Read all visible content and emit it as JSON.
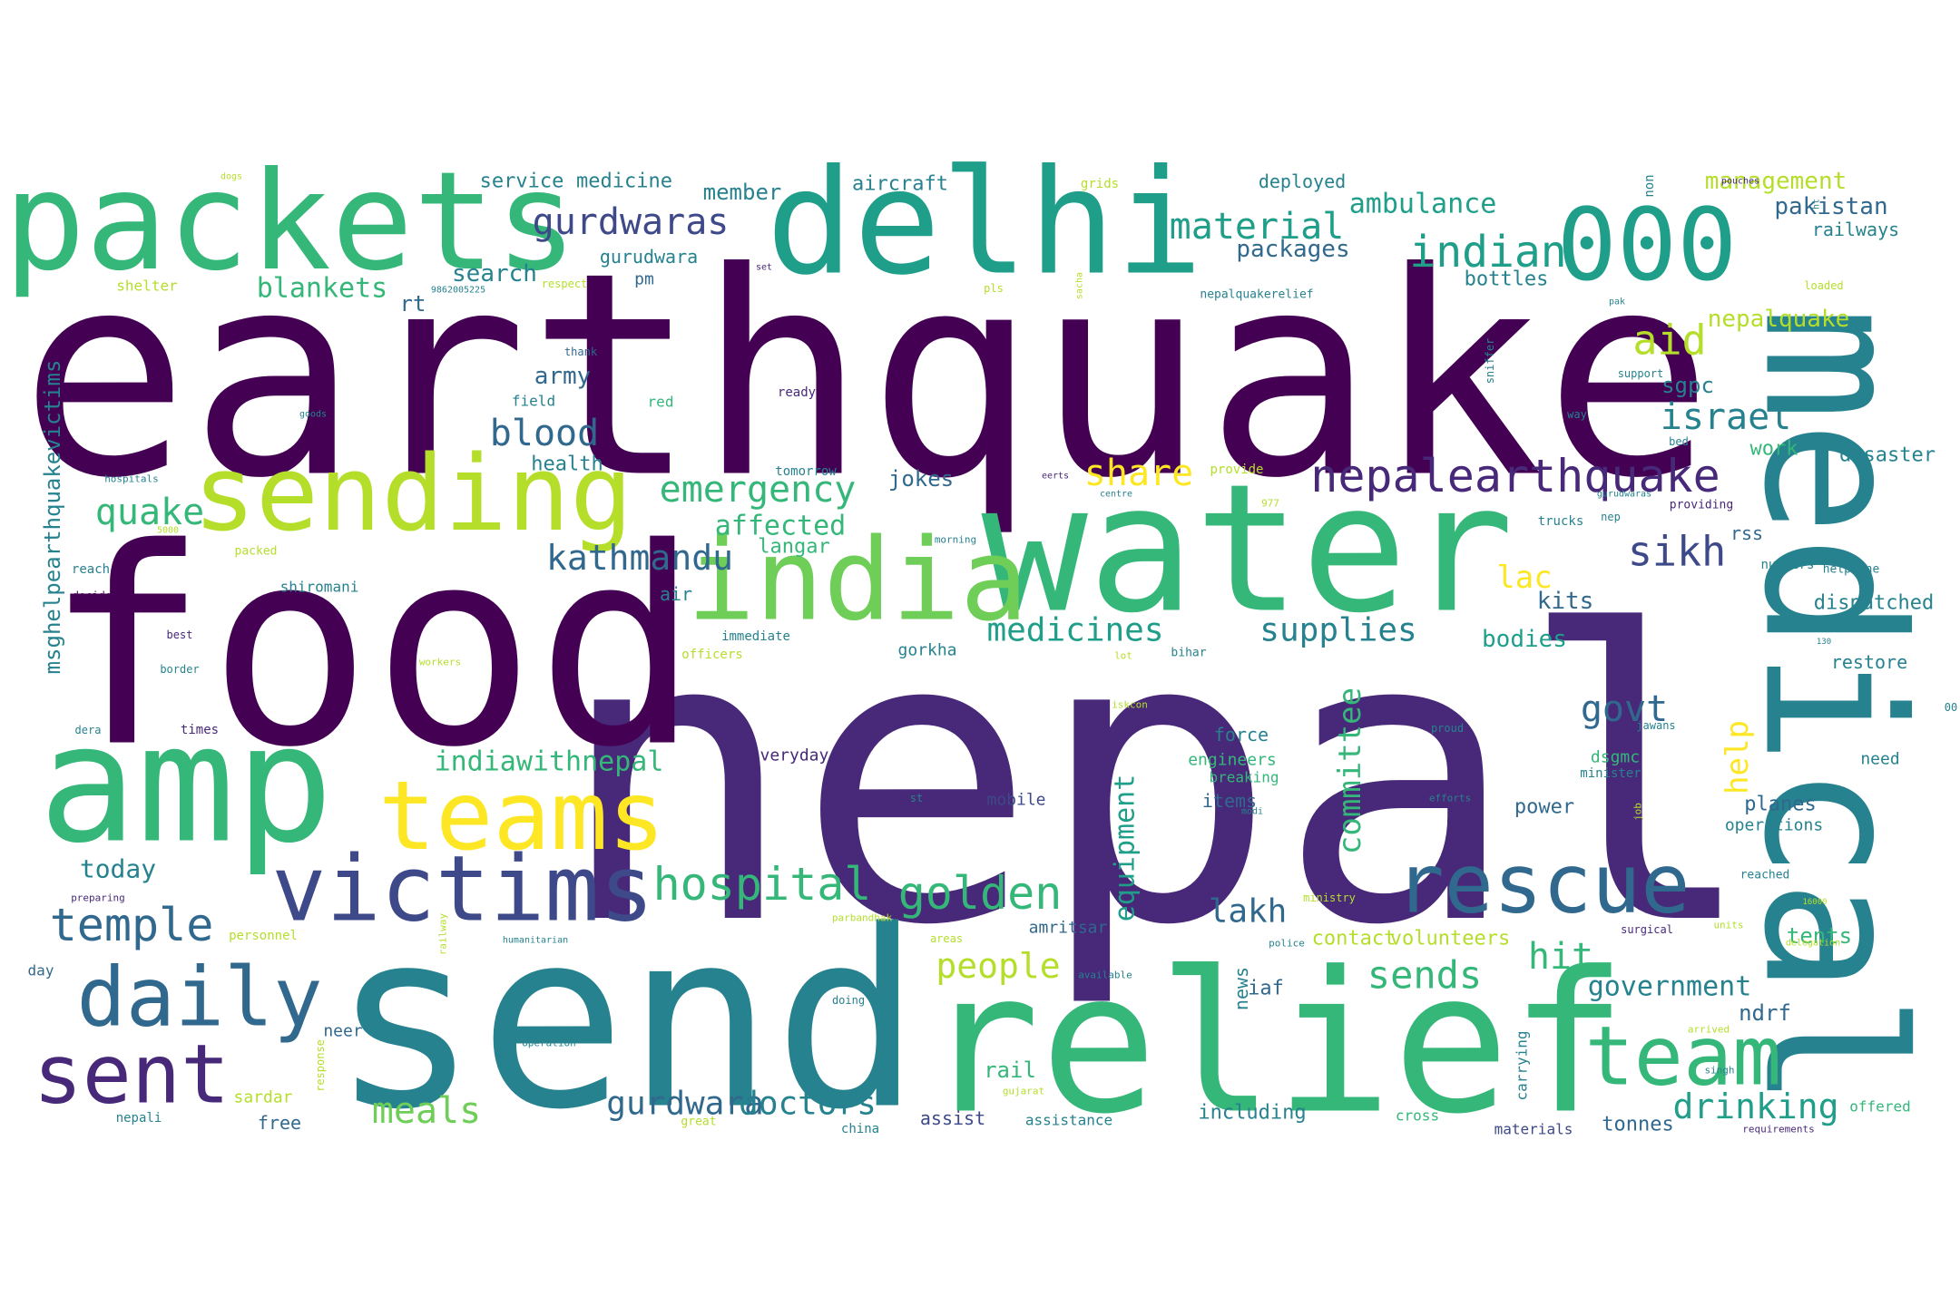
{
  "palette": {
    "dark_purple": "#440154",
    "purple": "#482878",
    "indigo": "#3e4989",
    "blue": "#31688e",
    "teal_blue": "#26828e",
    "teal": "#1f9e89",
    "green_teal": "#35b779",
    "green": "#6ece58",
    "lime": "#b5de2b",
    "yellow": "#fde725"
  },
  "words": [
    {
      "text": "nepal",
      "color": "#482878"
    },
    {
      "text": "earthquake",
      "color": "#440154"
    },
    {
      "text": "food",
      "color": "#440154"
    },
    {
      "text": "send",
      "color": "#26828e"
    },
    {
      "text": "medical",
      "color": "#26828e"
    },
    {
      "text": "relief",
      "color": "#35b779"
    },
    {
      "text": "water",
      "color": "#35b779"
    },
    {
      "text": "delhi",
      "color": "#1f9e89"
    },
    {
      "text": "packets",
      "color": "#35b779"
    },
    {
      "text": "amp",
      "color": "#35b779"
    },
    {
      "text": "india",
      "color": "#6ece58"
    },
    {
      "text": "sending",
      "color": "#b5de2b"
    },
    {
      "text": "victims",
      "color": "#3e4989"
    },
    {
      "text": "rescue",
      "color": "#31688e"
    },
    {
      "text": "teams",
      "color": "#fde725"
    },
    {
      "text": "000",
      "color": "#1f9e89"
    },
    {
      "text": "team",
      "color": "#35b779"
    },
    {
      "text": "daily",
      "color": "#31688e"
    },
    {
      "text": "sent",
      "color": "#482878"
    },
    {
      "text": "nepalearthquake",
      "color": "#482878"
    },
    {
      "text": "hospital",
      "color": "#35b779"
    },
    {
      "text": "golden",
      "color": "#35b779"
    },
    {
      "text": "temple",
      "color": "#31688e"
    },
    {
      "text": "gurdwaras",
      "color": "#3e4989"
    },
    {
      "text": "material",
      "color": "#1f9e89"
    },
    {
      "text": "indian",
      "color": "#1f9e89"
    },
    {
      "text": "emergency",
      "color": "#35b779"
    },
    {
      "text": "kathmandu",
      "color": "#31688e"
    },
    {
      "text": "blood",
      "color": "#31688e"
    },
    {
      "text": "quake",
      "color": "#35b779"
    },
    {
      "text": "share",
      "color": "#fde725"
    },
    {
      "text": "israel",
      "color": "#26828e"
    },
    {
      "text": "sikh",
      "color": "#3e4989"
    },
    {
      "text": "aid",
      "color": "#b5de2b"
    },
    {
      "text": "govt",
      "color": "#31688e"
    },
    {
      "text": "medicines",
      "color": "#1f9e89"
    },
    {
      "text": "supplies",
      "color": "#26828e"
    },
    {
      "text": "committee",
      "color": "#35b779"
    },
    {
      "text": "equipment",
      "color": "#1f9e89"
    },
    {
      "text": "help",
      "color": "#fde725"
    },
    {
      "text": "gurdwara",
      "color": "#31688e"
    },
    {
      "text": "doctors",
      "color": "#26828e"
    },
    {
      "text": "drinking",
      "color": "#1f9e89"
    },
    {
      "text": "meals",
      "color": "#6ece58"
    },
    {
      "text": "people",
      "color": "#b5de2b"
    },
    {
      "text": "lakh",
      "color": "#31688e"
    },
    {
      "text": "sends",
      "color": "#35b779"
    },
    {
      "text": "hit",
      "color": "#35b779"
    },
    {
      "text": "ambulance",
      "color": "#1f9e89"
    },
    {
      "text": "affected",
      "color": "#35b779"
    },
    {
      "text": "indiawithnepal",
      "color": "#35b779"
    },
    {
      "text": "blankets",
      "color": "#35b779"
    },
    {
      "text": "packages",
      "color": "#31688e"
    },
    {
      "text": "lac",
      "color": "#fde725"
    },
    {
      "text": "kits",
      "color": "#31688e"
    },
    {
      "text": "bodies",
      "color": "#1f9e89"
    },
    {
      "text": "army",
      "color": "#31688e"
    },
    {
      "text": "today",
      "color": "#26828e"
    },
    {
      "text": "government",
      "color": "#26828e"
    },
    {
      "text": "nepalquake",
      "color": "#b5de2b"
    },
    {
      "text": "msghelpearthquakevictims",
      "color": "#26828e"
    },
    {
      "text": "search",
      "color": "#26828e"
    },
    {
      "text": "rt",
      "color": "#31688e"
    },
    {
      "text": "health",
      "color": "#26828e"
    },
    {
      "text": "jokes",
      "color": "#31688e"
    },
    {
      "text": "langar",
      "color": "#35b779"
    },
    {
      "text": "sgpc",
      "color": "#26828e"
    },
    {
      "text": "management",
      "color": "#b5de2b"
    },
    {
      "text": "pakistan",
      "color": "#31688e"
    },
    {
      "text": "railways",
      "color": "#26828e"
    },
    {
      "text": "member",
      "color": "#26828e"
    },
    {
      "text": "service",
      "color": "#26828e"
    },
    {
      "text": "medicine",
      "color": "#26828e"
    },
    {
      "text": "aircraft",
      "color": "#26828e"
    },
    {
      "text": "deployed",
      "color": "#26828e"
    },
    {
      "text": "bottles",
      "color": "#26828e"
    },
    {
      "text": "gurudwara",
      "color": "#26828e"
    },
    {
      "text": "pm",
      "color": "#31688e"
    },
    {
      "text": "force",
      "color": "#26828e"
    },
    {
      "text": "items",
      "color": "#31688e"
    },
    {
      "text": "power",
      "color": "#31688e"
    },
    {
      "text": "planes",
      "color": "#31688e"
    },
    {
      "text": "operations",
      "color": "#26828e"
    },
    {
      "text": "work",
      "color": "#35b779"
    },
    {
      "text": "disaster",
      "color": "#26828e"
    },
    {
      "text": "dispatched",
      "color": "#26828e"
    },
    {
      "text": "restore",
      "color": "#26828e"
    },
    {
      "text": "rss",
      "color": "#31688e"
    },
    {
      "text": "tents",
      "color": "#35b779"
    },
    {
      "text": "ndrf",
      "color": "#31688e"
    },
    {
      "text": "news",
      "color": "#26828e"
    },
    {
      "text": "iaf",
      "color": "#31688e"
    },
    {
      "text": "contact",
      "color": "#b5de2b"
    },
    {
      "text": "volunteers",
      "color": "#b5de2b"
    },
    {
      "text": "amritsar",
      "color": "#31688e"
    },
    {
      "text": "mobile",
      "color": "#3e4989"
    },
    {
      "text": "everyday",
      "color": "#482878"
    },
    {
      "text": "engineers",
      "color": "#35b779"
    },
    {
      "text": "breaking",
      "color": "#35b779"
    },
    {
      "text": "dsgmc",
      "color": "#35b779"
    },
    {
      "text": "minister",
      "color": "#26828e"
    },
    {
      "text": "need",
      "color": "#26828e"
    },
    {
      "text": "rail",
      "color": "#35b779"
    },
    {
      "text": "carrying",
      "color": "#26828e"
    },
    {
      "text": "including",
      "color": "#26828e"
    },
    {
      "text": "tonnes",
      "color": "#31688e"
    },
    {
      "text": "materials",
      "color": "#3e4989"
    },
    {
      "text": "cross",
      "color": "#35b779"
    },
    {
      "text": "assist",
      "color": "#3e4989"
    },
    {
      "text": "assistance",
      "color": "#26828e"
    },
    {
      "text": "offered",
      "color": "#35b779"
    },
    {
      "text": "free",
      "color": "#31688e"
    },
    {
      "text": "sardar",
      "color": "#b5de2b"
    },
    {
      "text": "neer",
      "color": "#31688e"
    },
    {
      "text": "gorkha",
      "color": "#26828e"
    },
    {
      "text": "air",
      "color": "#26828e"
    },
    {
      "text": "shiromani",
      "color": "#26828e"
    },
    {
      "text": "field",
      "color": "#26828e"
    },
    {
      "text": "red",
      "color": "#35b779"
    },
    {
      "text": "ready",
      "color": "#482878"
    },
    {
      "text": "tomorrow",
      "color": "#26828e"
    },
    {
      "text": "shelter",
      "color": "#b5de2b"
    },
    {
      "text": "non",
      "color": "#26828e"
    },
    {
      "text": "grids",
      "color": "#b5de2b"
    },
    {
      "text": "dogs",
      "color": "#b5de2b"
    },
    {
      "text": "ht",
      "color": "#26828e"
    },
    {
      "text": "loaded",
      "color": "#b5de2b"
    },
    {
      "text": "pak",
      "color": "#26828e"
    },
    {
      "text": "support",
      "color": "#26828e"
    },
    {
      "text": "sniffer",
      "color": "#26828e"
    },
    {
      "text": "way",
      "color": "#26828e"
    },
    {
      "text": "bed",
      "color": "#26828e"
    },
    {
      "text": "providing",
      "color": "#482878"
    },
    {
      "text": "nep",
      "color": "#26828e"
    },
    {
      "text": "trucks",
      "color": "#26828e"
    },
    {
      "text": "numbers",
      "color": "#26828e"
    },
    {
      "text": "helpline",
      "color": "#26828e"
    },
    {
      "text": "sacha",
      "color": "#b5de2b"
    },
    {
      "text": "nepalquakerelief",
      "color": "#26828e"
    },
    {
      "text": "pls",
      "color": "#b5de2b"
    },
    {
      "text": "set",
      "color": "#482878"
    },
    {
      "text": "respect",
      "color": "#b5de2b"
    },
    {
      "text": "9862005225",
      "color": "#26828e"
    },
    {
      "text": "thank",
      "color": "#31688e"
    },
    {
      "text": "goods",
      "color": "#26828e"
    },
    {
      "text": "hospitals",
      "color": "#26828e"
    },
    {
      "text": "5000",
      "color": "#b5de2b"
    },
    {
      "text": "reach",
      "color": "#26828e"
    },
    {
      "text": "packed",
      "color": "#b5de2b"
    },
    {
      "text": "decided",
      "color": "#440154"
    },
    {
      "text": "best",
      "color": "#482878"
    },
    {
      "text": "border",
      "color": "#26828e"
    },
    {
      "text": "workers",
      "color": "#b5de2b"
    },
    {
      "text": "officers",
      "color": "#b5de2b"
    },
    {
      "text": "immediate",
      "color": "#26828e"
    },
    {
      "text": "dera",
      "color": "#26828e"
    },
    {
      "text": "times",
      "color": "#482878"
    },
    {
      "text": "day",
      "color": "#31688e"
    },
    {
      "text": "preparing",
      "color": "#482878"
    },
    {
      "text": "personnel",
      "color": "#b5de2b"
    },
    {
      "text": "railway",
      "color": "#b5de2b"
    },
    {
      "text": "response",
      "color": "#b5de2b"
    },
    {
      "text": "humanitarian",
      "color": "#26828e"
    },
    {
      "text": "parbandhak",
      "color": "#b5de2b"
    },
    {
      "text": "areas",
      "color": "#b5de2b"
    },
    {
      "text": "doing",
      "color": "#26828e"
    },
    {
      "text": "operation",
      "color": "#26828e"
    },
    {
      "text": "china",
      "color": "#26828e"
    },
    {
      "text": "great",
      "color": "#b5de2b"
    },
    {
      "text": "nepali",
      "color": "#26828e"
    },
    {
      "text": "gujarat",
      "color": "#b5de2b"
    },
    {
      "text": "available",
      "color": "#26828e"
    },
    {
      "text": "lot",
      "color": "#b5de2b"
    },
    {
      "text": "bihar",
      "color": "#26828e"
    },
    {
      "text": "iskcon",
      "color": "#b5de2b"
    },
    {
      "text": "proud",
      "color": "#26828e"
    },
    {
      "text": "jawans",
      "color": "#26828e"
    },
    {
      "text": "efforts",
      "color": "#26828e"
    },
    {
      "text": "job",
      "color": "#b5de2b"
    },
    {
      "text": "modi",
      "color": "#26828e"
    },
    {
      "text": "ministry",
      "color": "#b5de2b"
    },
    {
      "text": "police",
      "color": "#26828e"
    },
    {
      "text": "st",
      "color": "#26828e"
    },
    {
      "text": "surgical",
      "color": "#482878"
    },
    {
      "text": "units",
      "color": "#b5de2b"
    },
    {
      "text": "arrived",
      "color": "#b5de2b"
    },
    {
      "text": "singh",
      "color": "#26828e"
    },
    {
      "text": "requirements",
      "color": "#482878"
    },
    {
      "text": "reached",
      "color": "#26828e"
    },
    {
      "text": "16000",
      "color": "#b5de2b"
    },
    {
      "text": "delegation",
      "color": "#b5de2b"
    },
    {
      "text": "00",
      "color": "#26828e"
    },
    {
      "text": "130",
      "color": "#26828e"
    },
    {
      "text": "provide",
      "color": "#b5de2b"
    },
    {
      "text": "977",
      "color": "#b5de2b"
    },
    {
      "text": "eerts",
      "color": "#482878"
    },
    {
      "text": "centre",
      "color": "#26828e"
    },
    {
      "text": "gurudwaras",
      "color": "#26828e"
    },
    {
      "text": "morning",
      "color": "#26828e"
    },
    {
      "text": "pouches",
      "color": "#482878"
    }
  ]
}
